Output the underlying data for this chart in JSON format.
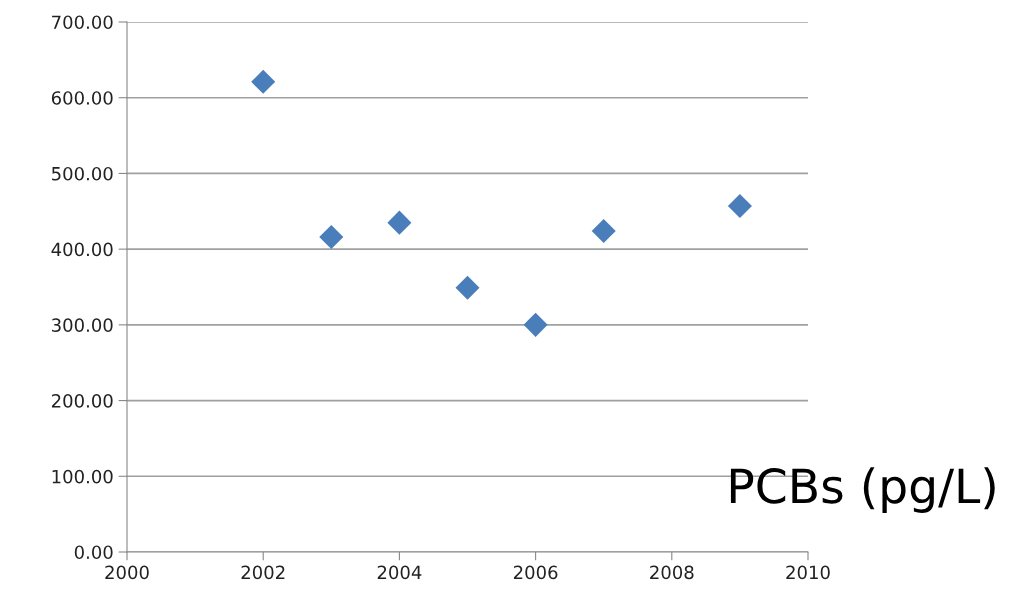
{
  "chart_data": {
    "type": "scatter",
    "x": [
      2002,
      2003,
      2004,
      2005,
      2006,
      2007,
      2009
    ],
    "values": [
      621,
      416,
      435,
      349,
      300,
      424,
      457
    ],
    "color": "#4a7ebb",
    "marker": "diamond",
    "xlim": [
      2000,
      2010
    ],
    "xticks": [
      2000,
      2002,
      2004,
      2006,
      2008,
      2010
    ],
    "ylim": [
      0,
      700
    ],
    "yticks": [
      {
        "value": 0,
        "label": "0.00"
      },
      {
        "value": 100,
        "label": "100.00"
      },
      {
        "value": 200,
        "label": "200.00"
      },
      {
        "value": 300,
        "label": "300.00"
      },
      {
        "value": 400,
        "label": "400.00"
      },
      {
        "value": 500,
        "label": "500.00"
      },
      {
        "value": 600,
        "label": "600.00"
      },
      {
        "value": 700,
        "label": "700.00"
      }
    ],
    "grid": "y",
    "annotations": [
      "PCBs (pg/L)"
    ]
  }
}
